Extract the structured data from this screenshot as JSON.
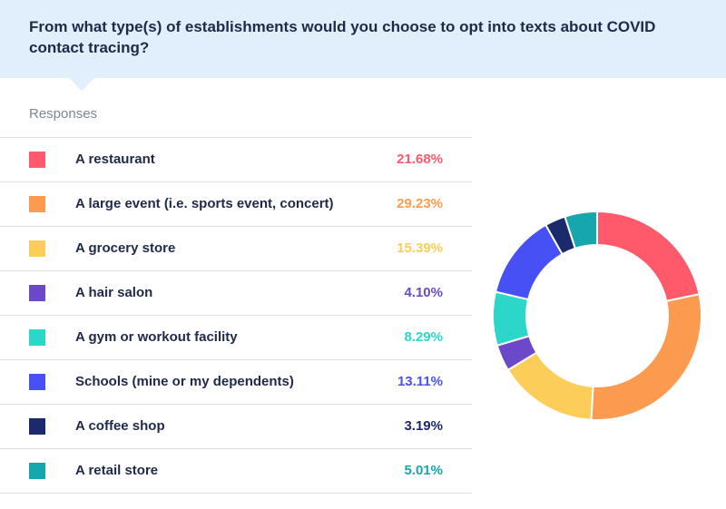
{
  "question": "From what type(s) of establishments would you choose to opt into texts about COVID contact tracing?",
  "responses_label": "Responses",
  "rows": [
    {
      "label": "A restaurant",
      "percent_text": "21.68%",
      "color": "#fe5a6b"
    },
    {
      "label": "A large event (i.e. sports event, concert)",
      "percent_text": "29.23%",
      "color": "#fc9b4f"
    },
    {
      "label": "A grocery store",
      "percent_text": "15.39%",
      "color": "#fdcd59"
    },
    {
      "label": "A hair salon",
      "percent_text": "4.10%",
      "color": "#6b49c9"
    },
    {
      "label": "A gym or workout facility",
      "percent_text": "8.29%",
      "color": "#2cd6c8"
    },
    {
      "label": "Schools (mine or my dependents)",
      "percent_text": "13.11%",
      "color": "#4650f5"
    },
    {
      "label": "A coffee shop",
      "percent_text": "3.19%",
      "color": "#1a2a6c"
    },
    {
      "label": "A retail store",
      "percent_text": "5.01%",
      "color": "#16a6ae"
    }
  ],
  "chart_data": {
    "type": "pie",
    "categories": [
      "A restaurant",
      "A large event (i.e. sports event, concert)",
      "A grocery store",
      "A hair salon",
      "A gym or workout facility",
      "Schools (mine or my dependents)",
      "A coffee shop",
      "A retail store"
    ],
    "values": [
      21.68,
      29.23,
      15.39,
      4.1,
      8.29,
      13.11,
      3.19,
      5.01
    ],
    "colors": [
      "#fe5a6b",
      "#fc9b4f",
      "#fdcd59",
      "#6b49c9",
      "#2cd6c8",
      "#4650f5",
      "#1a2a6c",
      "#16a6ae"
    ],
    "style": "donut",
    "legend": "left-table"
  }
}
